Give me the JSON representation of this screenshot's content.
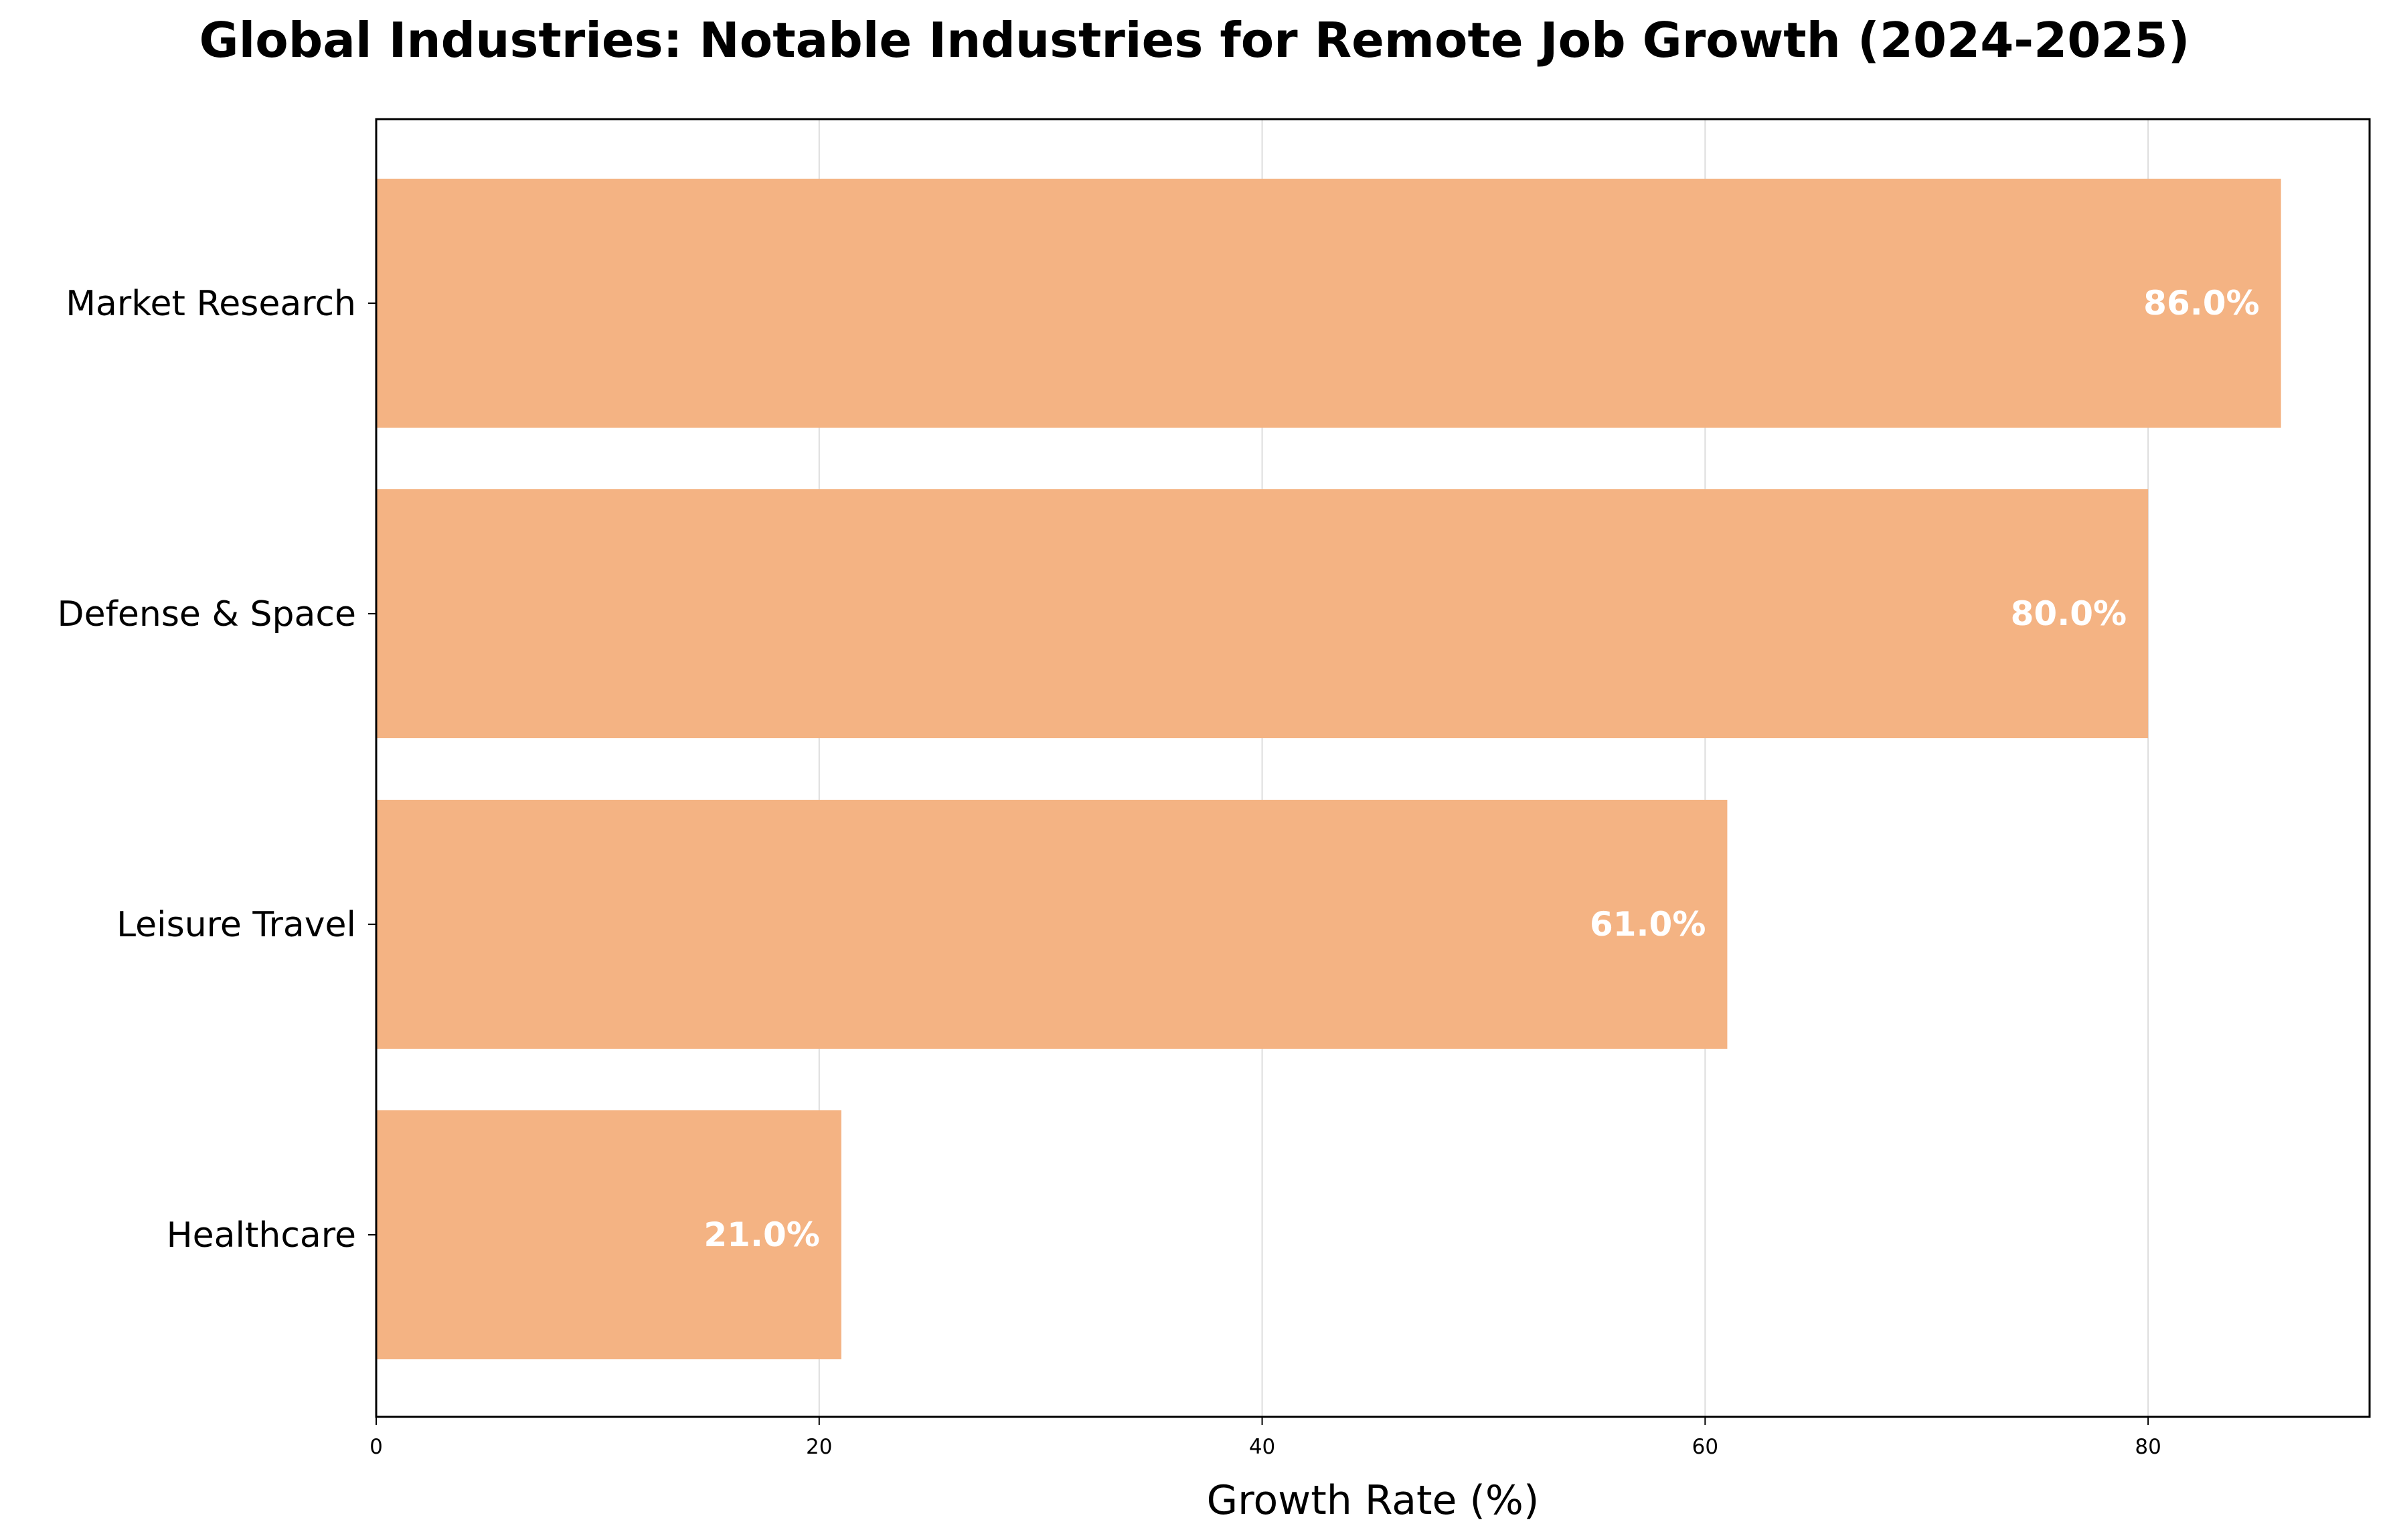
{
  "chart_data": {
    "type": "bar",
    "orientation": "horizontal",
    "title": "Global Industries: Notable Industries for Remote Job Growth (2024-2025)",
    "xlabel": "Growth Rate (%)",
    "ylabel": "",
    "categories": [
      "Market Research",
      "Defense & Space",
      "Leisure Travel",
      "Healthcare"
    ],
    "values": [
      86.0,
      80.0,
      61.0,
      21.0
    ],
    "data_labels": [
      "86.0%",
      "80.0%",
      "61.0%",
      "21.0%"
    ],
    "xlim": [
      0,
      90
    ],
    "xticks": [
      0,
      20,
      40,
      60,
      80
    ],
    "grid": "vertical",
    "bar_color": "#f4b383"
  }
}
